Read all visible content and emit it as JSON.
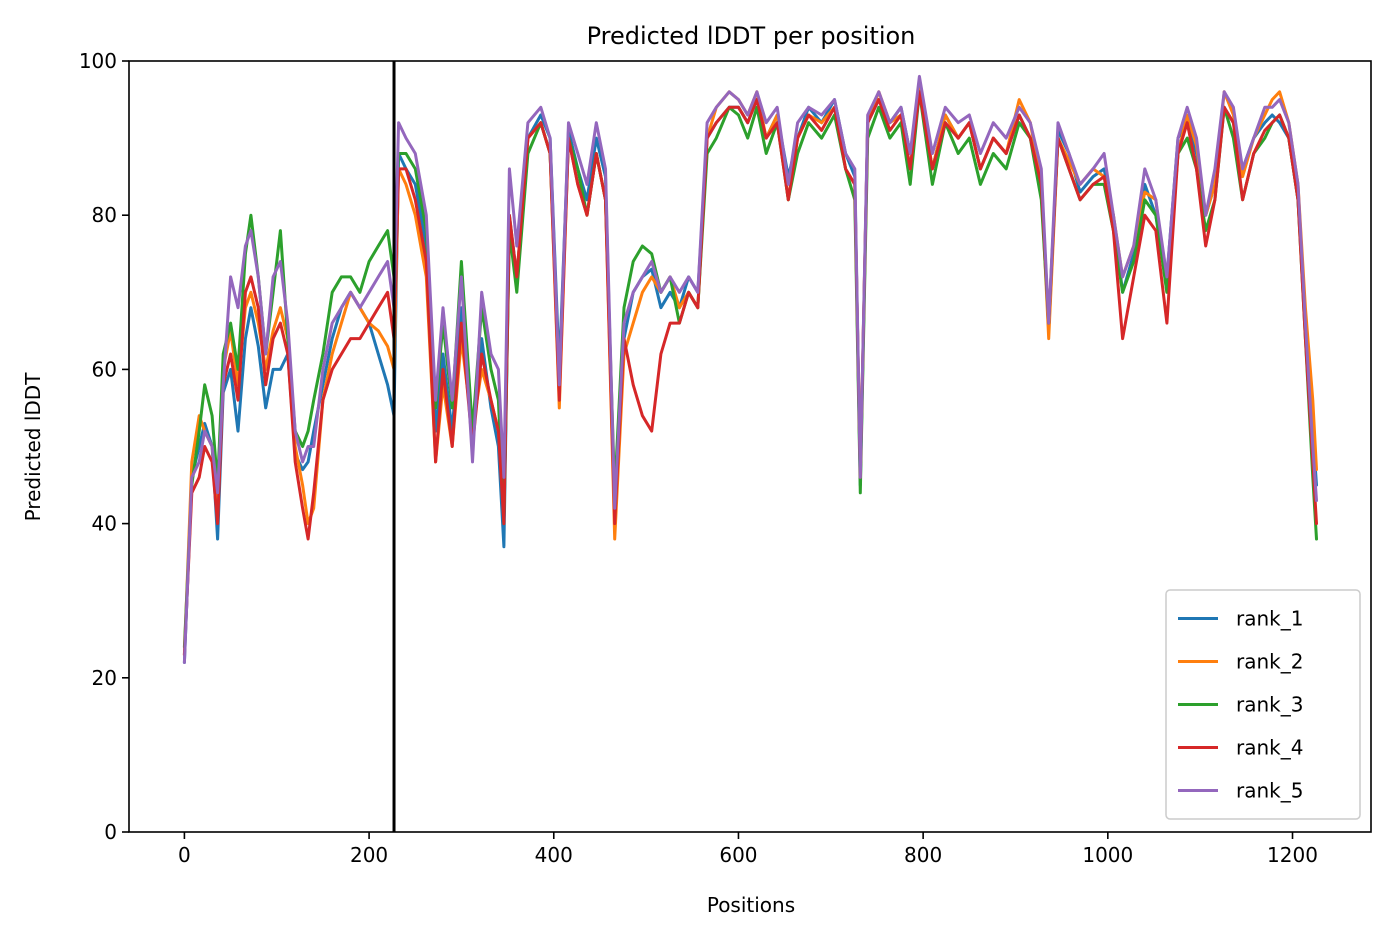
{
  "chart_data": {
    "type": "line",
    "title": "Predicted lDDT per position",
    "xlabel": "Positions",
    "ylabel": "Predicted lDDT",
    "xlim": [
      -60,
      1285
    ],
    "ylim": [
      0,
      100
    ],
    "xticks": [
      0,
      200,
      400,
      600,
      800,
      1000,
      1200
    ],
    "yticks": [
      0,
      20,
      40,
      60,
      80,
      100
    ],
    "grid": false,
    "legend_position": "lower-right",
    "vline": {
      "x": 227,
      "color": "#000000"
    },
    "x": [
      0,
      8,
      16,
      22,
      30,
      36,
      42,
      50,
      58,
      66,
      72,
      80,
      88,
      96,
      104,
      112,
      120,
      128,
      134,
      140,
      150,
      160,
      170,
      180,
      190,
      200,
      210,
      220,
      227,
      232,
      240,
      250,
      262,
      272,
      280,
      290,
      300,
      312,
      322,
      332,
      340,
      346,
      352,
      360,
      372,
      386,
      396,
      406,
      416,
      426,
      436,
      446,
      456,
      466,
      476,
      486,
      496,
      506,
      516,
      526,
      536,
      546,
      556,
      566,
      576,
      590,
      600,
      610,
      620,
      630,
      642,
      654,
      664,
      676,
      690,
      704,
      716,
      726,
      732,
      740,
      752,
      764,
      776,
      786,
      796,
      810,
      824,
      838,
      850,
      862,
      876,
      890,
      904,
      916,
      928,
      936,
      946,
      958,
      970,
      984,
      996,
      1006,
      1016,
      1028,
      1040,
      1052,
      1064,
      1076,
      1086,
      1096,
      1106,
      1116,
      1126,
      1136,
      1146,
      1158,
      1170,
      1178,
      1186,
      1196,
      1206,
      1214,
      1222,
      1226
    ],
    "series": [
      {
        "name": "rank_1",
        "color": "#1f77b4",
        "values": [
          22,
          46,
          50,
          53,
          50,
          38,
          57,
          60,
          52,
          64,
          68,
          63,
          55,
          60,
          60,
          62,
          49,
          47,
          48,
          52,
          58,
          64,
          68,
          70,
          68,
          66,
          62,
          58,
          54,
          88,
          86,
          84,
          76,
          52,
          62,
          52,
          68,
          50,
          64,
          55,
          50,
          37,
          80,
          72,
          90,
          93,
          90,
          60,
          91,
          86,
          82,
          90,
          85,
          40,
          64,
          70,
          72,
          73,
          68,
          70,
          68,
          72,
          70,
          90,
          92,
          94,
          94,
          92,
          95,
          90,
          93,
          85,
          90,
          94,
          92,
          95,
          88,
          85,
          45,
          92,
          95,
          92,
          94,
          88,
          96,
          86,
          93,
          90,
          92,
          86,
          90,
          88,
          93,
          90,
          85,
          65,
          91,
          88,
          83,
          85,
          86,
          80,
          70,
          75,
          84,
          80,
          72,
          90,
          92,
          88,
          80,
          84,
          94,
          92,
          86,
          90,
          92,
          93,
          92,
          90,
          82,
          66,
          52,
          45
        ]
      },
      {
        "name": "rank_2",
        "color": "#ff7f0e",
        "values": [
          23,
          48,
          54,
          52,
          50,
          43,
          60,
          65,
          58,
          68,
          70,
          66,
          60,
          65,
          68,
          64,
          50,
          45,
          40,
          42,
          56,
          62,
          66,
          70,
          68,
          66,
          65,
          63,
          60,
          86,
          84,
          80,
          72,
          48,
          58,
          50,
          64,
          52,
          60,
          56,
          52,
          42,
          78,
          72,
          90,
          92,
          88,
          55,
          90,
          84,
          80,
          88,
          82,
          38,
          62,
          66,
          70,
          72,
          70,
          72,
          68,
          70,
          68,
          90,
          94,
          96,
          95,
          93,
          96,
          90,
          93,
          82,
          90,
          93,
          92,
          94,
          86,
          84,
          46,
          92,
          96,
          92,
          93,
          86,
          97,
          86,
          93,
          90,
          92,
          86,
          90,
          88,
          95,
          92,
          84,
          64,
          90,
          87,
          84,
          86,
          85,
          80,
          72,
          76,
          83,
          82,
          70,
          88,
          93,
          89,
          80,
          84,
          96,
          93,
          85,
          90,
          93,
          95,
          96,
          92,
          84,
          68,
          56,
          47
        ]
      },
      {
        "name": "rank_3",
        "color": "#2ca02c",
        "values": [
          24,
          45,
          52,
          58,
          54,
          45,
          62,
          66,
          60,
          75,
          80,
          72,
          62,
          70,
          78,
          64,
          52,
          50,
          52,
          56,
          62,
          70,
          72,
          72,
          70,
          74,
          76,
          78,
          72,
          88,
          88,
          86,
          78,
          55,
          66,
          55,
          74,
          52,
          68,
          60,
          56,
          40,
          78,
          70,
          88,
          92,
          88,
          58,
          90,
          86,
          80,
          88,
          82,
          44,
          68,
          74,
          76,
          75,
          70,
          72,
          66,
          70,
          68,
          88,
          90,
          94,
          93,
          90,
          94,
          88,
          92,
          82,
          88,
          92,
          90,
          93,
          86,
          82,
          44,
          90,
          94,
          90,
          92,
          84,
          96,
          84,
          92,
          88,
          90,
          84,
          88,
          86,
          92,
          90,
          82,
          66,
          90,
          86,
          82,
          84,
          84,
          78,
          70,
          74,
          82,
          80,
          70,
          88,
          90,
          86,
          78,
          82,
          94,
          90,
          82,
          88,
          90,
          92,
          93,
          90,
          82,
          64,
          46,
          38
        ]
      },
      {
        "name": "rank_4",
        "color": "#d62728",
        "values": [
          23,
          44,
          46,
          50,
          48,
          40,
          58,
          62,
          56,
          70,
          72,
          68,
          58,
          64,
          66,
          62,
          48,
          42,
          38,
          44,
          56,
          60,
          62,
          64,
          64,
          66,
          68,
          70,
          64,
          86,
          86,
          82,
          74,
          48,
          60,
          50,
          66,
          50,
          62,
          56,
          52,
          40,
          80,
          72,
          90,
          92,
          88,
          56,
          90,
          84,
          80,
          88,
          82,
          40,
          64,
          58,
          54,
          52,
          62,
          66,
          66,
          70,
          68,
          90,
          92,
          94,
          94,
          92,
          95,
          90,
          92,
          82,
          90,
          93,
          91,
          94,
          86,
          84,
          46,
          92,
          95,
          91,
          93,
          86,
          96,
          86,
          92,
          90,
          92,
          86,
          90,
          88,
          93,
          90,
          84,
          66,
          90,
          86,
          82,
          84,
          85,
          78,
          64,
          72,
          80,
          78,
          66,
          88,
          92,
          86,
          76,
          82,
          94,
          92,
          82,
          88,
          91,
          92,
          93,
          90,
          82,
          64,
          48,
          40
        ]
      },
      {
        "name": "rank_5",
        "color": "#9467bd",
        "values": [
          22,
          46,
          48,
          52,
          50,
          44,
          58,
          72,
          68,
          76,
          78,
          72,
          62,
          72,
          74,
          66,
          52,
          48,
          50,
          50,
          60,
          66,
          68,
          70,
          68,
          70,
          72,
          74,
          68,
          92,
          90,
          88,
          80,
          56,
          68,
          56,
          72,
          48,
          70,
          62,
          60,
          46,
          86,
          76,
          92,
          94,
          90,
          58,
          92,
          88,
          84,
          92,
          86,
          42,
          66,
          70,
          72,
          74,
          70,
          72,
          70,
          72,
          70,
          92,
          94,
          96,
          95,
          93,
          96,
          92,
          94,
          84,
          92,
          94,
          93,
          95,
          88,
          86,
          46,
          93,
          96,
          92,
          94,
          88,
          98,
          88,
          94,
          92,
          93,
          88,
          92,
          90,
          94,
          92,
          86,
          66,
          92,
          88,
          84,
          86,
          88,
          80,
          72,
          76,
          86,
          82,
          72,
          90,
          94,
          90,
          80,
          86,
          96,
          94,
          86,
          90,
          94,
          94,
          95,
          92,
          84,
          66,
          50,
          43
        ]
      }
    ]
  }
}
